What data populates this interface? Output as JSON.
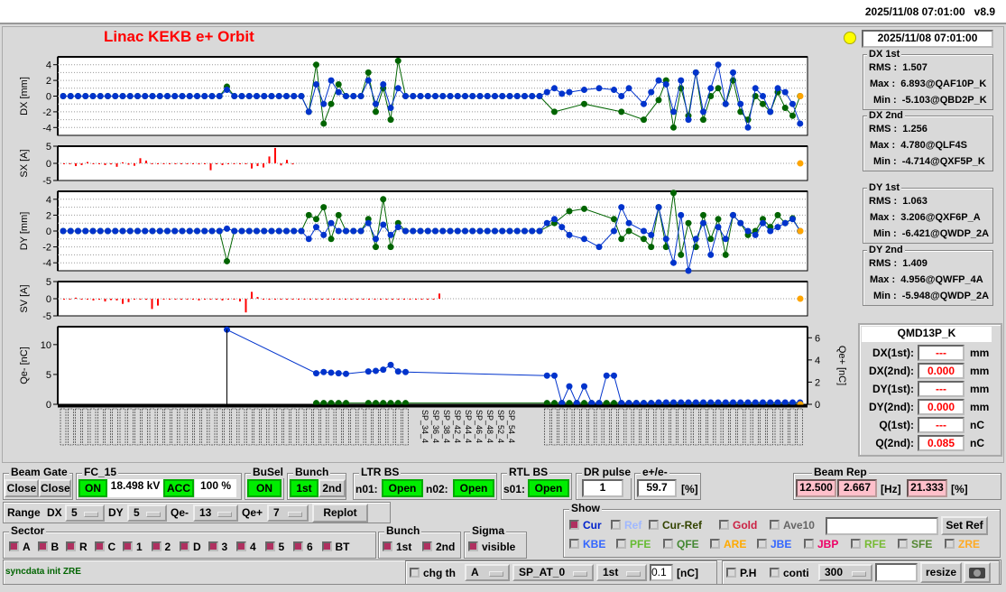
{
  "header": {
    "datetime": "2025/11/08 07:01:00",
    "version": "v8.9"
  },
  "title": "Linac KEKB e+ Orbit",
  "status_datetime": "2025/11/08 07:01:00",
  "status_lamp_color": "#ffff00",
  "stats": [
    {
      "title": "DX 1st",
      "rms_label": "RMS :",
      "rms": "1.507",
      "max_label": "Max :",
      "max": "6.893@QAF10P_K",
      "min_label": "Min :",
      "min": "-5.103@QBD2P_K"
    },
    {
      "title": "DX 2nd",
      "rms_label": "RMS :",
      "rms": "1.256",
      "max_label": "Max :",
      "max": "4.780@QLF4S",
      "min_label": "Min :",
      "min": "-4.714@QXF5P_K"
    },
    {
      "title": "DY 1st",
      "rms_label": "RMS :",
      "rms": "1.063",
      "max_label": "Max :",
      "max": "3.206@QXF6P_A",
      "min_label": "Min :",
      "min": "-6.421@QWDP_2A"
    },
    {
      "title": "DY 2nd",
      "rms_label": "RMS :",
      "rms": "1.409",
      "max_label": "Max :",
      "max": "4.956@QWFP_4A",
      "min_label": "Min :",
      "min": "-5.948@QWDP_2A"
    }
  ],
  "element": {
    "name": "QMD13P_K",
    "rows": [
      {
        "label": "DX(1st):",
        "value": "---",
        "unit": "mm"
      },
      {
        "label": "DX(2nd):",
        "value": "0.000",
        "unit": "mm"
      },
      {
        "label": "DY(1st):",
        "value": "---",
        "unit": "mm"
      },
      {
        "label": "DY(2nd):",
        "value": "0.000",
        "unit": "mm"
      },
      {
        "label": "Q(1st):",
        "value": "---",
        "unit": "nC"
      },
      {
        "label": "Q(2nd):",
        "value": "0.085",
        "unit": "nC"
      }
    ]
  },
  "controls": {
    "beam_gate": {
      "label": "Beam Gate",
      "b1": "Close",
      "b2": "Close"
    },
    "fc15": {
      "label": "FC_15",
      "on": "ON",
      "kv": "18.498 kV",
      "acc": "ACC",
      "pct": "100 %"
    },
    "busel": {
      "label": "BuSel",
      "on": "ON"
    },
    "bunch": {
      "label": "Bunch",
      "first": "1st",
      "second": "2nd"
    },
    "ltr_bs": {
      "label": "LTR BS",
      "n01": "n01:",
      "n01_val": "Open",
      "n02": "n02:",
      "n02_val": "Open"
    },
    "rtl_bs": {
      "label": "RTL BS",
      "s01": "s01:",
      "s01_val": "Open"
    },
    "dr_pulse": {
      "label": "DR pulse",
      "value": "1"
    },
    "epe": {
      "label": "e+/e-",
      "value": "59.7",
      "unit": "[%]"
    },
    "beam_rep": {
      "label": "Beam Rep",
      "v1": "12.500",
      "v2": "2.667",
      "hz": "[Hz]",
      "v3": "21.333",
      "pct": "[%]"
    },
    "range": {
      "label": "Range",
      "dx_label": "DX",
      "dx": "5",
      "dy_label": "DY",
      "dy": "5",
      "qem_label": "Qe-",
      "qem": "13",
      "qep_label": "Qe+",
      "qep": "7",
      "replot": "Replot"
    },
    "sector": {
      "label": "Sector",
      "items": [
        "A",
        "B",
        "R",
        "C",
        "1",
        "2",
        "D",
        "3",
        "4",
        "5",
        "6",
        "BT"
      ]
    },
    "bunch2": {
      "label": "Bunch",
      "first": "1st",
      "second": "2nd"
    },
    "sigma": {
      "label": "Sigma",
      "visible": "visible"
    },
    "show": {
      "label": "Show",
      "row1": [
        {
          "t": "Cur",
          "c": "#0022cc",
          "on": true
        },
        {
          "t": "Ref",
          "c": "#a0b8ff",
          "on": false
        },
        {
          "t": "Cur-Ref",
          "c": "#334400",
          "on": false
        },
        {
          "t": "Gold",
          "c": "#cc2244",
          "on": false
        },
        {
          "t": "Ave10",
          "c": "#666666",
          "on": false
        }
      ],
      "row2": [
        {
          "t": "KBE",
          "c": "#3366ff"
        },
        {
          "t": "PFE",
          "c": "#66bb33"
        },
        {
          "t": "QFE",
          "c": "#448833"
        },
        {
          "t": "ARE",
          "c": "#ffaa00"
        },
        {
          "t": "JBE",
          "c": "#3366ff"
        },
        {
          "t": "JBP",
          "c": "#ee0066"
        },
        {
          "t": "RFE",
          "c": "#77bb33"
        },
        {
          "t": "SFE",
          "c": "#558833"
        },
        {
          "t": "ZRE",
          "c": "#ffaa22"
        }
      ],
      "ref_input": "",
      "set_ref": "Set Ref"
    },
    "status_msg": "syncdata init ZRE",
    "chg_th": "chg th",
    "chg_sel": "A",
    "sp_sel": "SP_AT_0",
    "bunch_sel": "1st",
    "thresh": "0.1",
    "thresh_unit": "[nC]",
    "ph": "P.H",
    "conti": "conti",
    "conti_sel": "300",
    "conti_input": "",
    "resize": "resize"
  },
  "chart_data": [
    {
      "type": "line",
      "ylabel": "DX [mm]",
      "ylim": [
        -5,
        5
      ],
      "ticks": [
        4,
        2,
        0,
        -2,
        -4
      ],
      "grid": true,
      "series": [
        {
          "color": "#006400",
          "values": [
            0,
            0,
            0,
            0,
            0,
            0,
            0,
            0,
            0,
            0,
            0,
            0,
            0,
            0,
            0,
            0,
            0,
            0,
            0,
            0,
            0,
            0,
            1.2,
            0,
            0,
            0,
            0,
            0,
            0,
            0,
            0,
            0,
            0,
            -2,
            4,
            -3.5,
            -1,
            1.5,
            0,
            0,
            0,
            3,
            -2,
            1,
            -3,
            4.5,
            0,
            0,
            0,
            0,
            0,
            0,
            0,
            0,
            0,
            0,
            0,
            0,
            0,
            0,
            0,
            0,
            0,
            0,
            0,
            null,
            -2,
            null,
            null,
            null,
            -1,
            null,
            null,
            null,
            null,
            -2,
            null,
            null,
            -3,
            null,
            -0.5,
            2,
            -4,
            1,
            -2.5,
            3,
            -3,
            0,
            1,
            -1,
            2,
            -2,
            -3,
            0,
            -1,
            -2,
            0.5,
            -1.5,
            -2.5,
            0
          ]
        },
        {
          "color": "#0033cc",
          "values": [
            0,
            0,
            0,
            0,
            0,
            0,
            0,
            0,
            0,
            0,
            0,
            0,
            0,
            0,
            0,
            0,
            0,
            0,
            0,
            0,
            0,
            0,
            0.8,
            0,
            0,
            0,
            0,
            0,
            0,
            0,
            0,
            0,
            0,
            -2,
            1.5,
            -1,
            2,
            0.5,
            0,
            0,
            0,
            2,
            -1,
            1.5,
            -1.5,
            1,
            0,
            0,
            0,
            0,
            0,
            0,
            0,
            0,
            0,
            0,
            0,
            0,
            0,
            0,
            0,
            0,
            0,
            0,
            0,
            0.5,
            1,
            0.3,
            0.5,
            null,
            0.8,
            null,
            1,
            null,
            0.8,
            0,
            1,
            null,
            -1,
            0.5,
            2,
            1.5,
            -2,
            2,
            -3,
            3,
            -2,
            1,
            4,
            -1,
            3,
            -1,
            -4,
            1,
            0,
            -2,
            1,
            0.5,
            -1,
            -3.5
          ]
        }
      ]
    },
    {
      "type": "bar",
      "ylabel": "SX [A]",
      "ylim": [
        -5,
        5
      ],
      "ticks": [
        5,
        0,
        -5
      ],
      "grid": true,
      "color": "#ff0000",
      "values": [
        0,
        0,
        -0.8,
        -0.5,
        0.4,
        -0.2,
        0,
        -0.5,
        -0.3,
        -1,
        0.3,
        -0.4,
        -0.7,
        1.5,
        0.8,
        0,
        0,
        0,
        0,
        0,
        0,
        0,
        0,
        -0.3,
        0,
        -2,
        0,
        -0.5,
        0,
        0,
        0,
        0,
        -1.5,
        -0.8,
        -1.2,
        2,
        4.5,
        -0.6,
        1,
        -0.3
      ]
    },
    {
      "type": "line",
      "ylabel": "DY [mm]",
      "ylim": [
        -5,
        5
      ],
      "ticks": [
        4,
        2,
        0,
        -2,
        -4
      ],
      "grid": true,
      "series": [
        {
          "color": "#006400",
          "values": [
            0,
            0,
            0,
            0,
            0,
            0,
            0,
            0,
            0,
            0,
            0,
            0,
            0,
            0,
            0,
            0,
            0,
            0,
            0,
            0,
            0,
            0,
            -3.8,
            0,
            0,
            0,
            0,
            0,
            0,
            0,
            0,
            0,
            0,
            2,
            1.5,
            3,
            -1,
            2,
            0,
            0,
            0,
            1.5,
            -2,
            4,
            -2,
            1,
            0,
            0,
            0,
            0,
            0,
            0,
            0,
            0,
            0,
            0,
            0,
            0,
            0,
            0,
            0,
            0,
            0,
            0,
            0,
            null,
            1,
            null,
            2.5,
            null,
            2.8,
            null,
            null,
            null,
            1.5,
            -1,
            0,
            null,
            -1,
            -2,
            3,
            -2,
            4.8,
            -3,
            1,
            -2,
            2,
            -1,
            1.5,
            -3,
            2,
            1,
            -0.5,
            0,
            1.5,
            0.5,
            2,
            1,
            1.6,
            0
          ]
        },
        {
          "color": "#0033cc",
          "values": [
            0,
            0,
            0,
            0,
            0,
            0,
            0,
            0,
            0,
            0,
            0,
            0,
            0,
            0,
            0,
            0,
            0,
            0,
            0,
            0,
            0,
            0,
            0.3,
            0,
            0,
            0,
            0,
            0,
            0,
            0,
            0,
            0,
            0,
            -1,
            0.5,
            -0.5,
            1,
            0,
            0,
            0,
            0,
            1,
            -1,
            0.8,
            -0.5,
            0.5,
            0,
            0,
            0,
            0,
            0,
            0,
            0,
            0,
            0,
            0,
            0,
            0,
            0,
            0,
            0,
            0,
            0,
            0,
            0,
            1,
            1.5,
            0.5,
            -0.5,
            null,
            -1,
            null,
            -2,
            null,
            0,
            3,
            1,
            null,
            0,
            -0.5,
            3,
            -1,
            -4,
            2,
            -5,
            -1,
            1,
            -3,
            0.5,
            -1,
            2,
            1,
            0,
            -0.5,
            1,
            0,
            0.5,
            1,
            1.5,
            0
          ]
        }
      ]
    },
    {
      "type": "bar",
      "ylabel": "SV [A]",
      "ylim": [
        -5,
        5
      ],
      "ticks": [
        5,
        0,
        -5
      ],
      "grid": true,
      "color": "#ff0000",
      "values": [
        0,
        0,
        0.3,
        -0.2,
        0,
        -0.5,
        -0.3,
        -0.8,
        -0.4,
        -0.5,
        -1.5,
        -1,
        0,
        0,
        -0.3,
        -3,
        -2,
        0,
        0,
        0,
        0,
        0,
        0,
        -0.5,
        0,
        0,
        0,
        -0.5,
        0,
        0,
        -0.8,
        -4,
        2,
        0.5,
        0,
        -0.3,
        0,
        0,
        0,
        0,
        0,
        0,
        0,
        0,
        0,
        0,
        0,
        0,
        0,
        0,
        0,
        0,
        0,
        0,
        0,
        0,
        0,
        0,
        0,
        0,
        0,
        0,
        0,
        0,
        1.5
      ]
    },
    {
      "type": "line",
      "ylabel": "Qe- [nC]",
      "y2label": "Qe+ [nC]",
      "ylim": [
        0,
        13
      ],
      "y2lim": [
        0,
        7
      ],
      "ticks": [
        10,
        5,
        0
      ],
      "ticks2": [
        6,
        4,
        2,
        0
      ],
      "grid": false,
      "series": [
        {
          "color": "#006400",
          "values": [
            null,
            null,
            null,
            null,
            null,
            null,
            null,
            null,
            null,
            null,
            null,
            null,
            null,
            null,
            null,
            null,
            null,
            null,
            null,
            null,
            null,
            null,
            null,
            null,
            null,
            null,
            null,
            null,
            null,
            null,
            null,
            null,
            null,
            null,
            0.2,
            0.2,
            0.2,
            0.2,
            0.2,
            null,
            null,
            0.2,
            0.2,
            0.2,
            0.2,
            0.2,
            0.2,
            null,
            null,
            null,
            null,
            null,
            null,
            null,
            null,
            null,
            null,
            null,
            null,
            null,
            null,
            null,
            null,
            null,
            null,
            0.2,
            0.2,
            0.2,
            0.2,
            0.2,
            0.2,
            0.2,
            0.2,
            0.2,
            0.2,
            0.2,
            0.2,
            0.2,
            0.2,
            0.2,
            0.2,
            0.2,
            0.2,
            0.2,
            0.2,
            0.2,
            0.2,
            0.2,
            0.2,
            0.2,
            0.2,
            0.2,
            0.2,
            0.2,
            0.2,
            0.2,
            0.2,
            0.2,
            0.2,
            0.2
          ]
        },
        {
          "color": "#0033cc",
          "values": [
            null,
            null,
            null,
            null,
            null,
            null,
            null,
            null,
            null,
            null,
            null,
            null,
            null,
            null,
            null,
            null,
            null,
            null,
            null,
            null,
            null,
            null,
            12.5,
            null,
            null,
            null,
            null,
            null,
            null,
            null,
            null,
            null,
            null,
            null,
            5.2,
            5.4,
            5.3,
            5.2,
            5.1,
            null,
            null,
            5.5,
            5.6,
            5.8,
            6.6,
            5.5,
            5.4,
            null,
            null,
            null,
            null,
            null,
            null,
            null,
            null,
            null,
            null,
            null,
            null,
            null,
            null,
            null,
            null,
            null,
            null,
            4.8,
            4.8,
            0.2,
            3,
            0.2,
            3,
            0.2,
            0.2,
            4.8,
            4.8,
            0.2,
            0.2,
            0.2,
            0.2,
            0.2,
            0.3,
            0.3,
            0.3,
            0.3,
            0.3,
            0.3,
            0.3,
            0.3,
            0.3,
            0.3,
            0.3,
            0.3,
            0.3,
            0.3,
            0.3,
            0.3,
            0.3,
            0.3,
            0.3,
            0.3
          ]
        }
      ]
    }
  ],
  "axis_labels": [
    "SP_34_4",
    "SP_36_4",
    "SP_38_4",
    "SP_42_4",
    "SP_44_4",
    "SP_46_4",
    "SP_48_4",
    "SP_52_4",
    "SP_54_4"
  ]
}
